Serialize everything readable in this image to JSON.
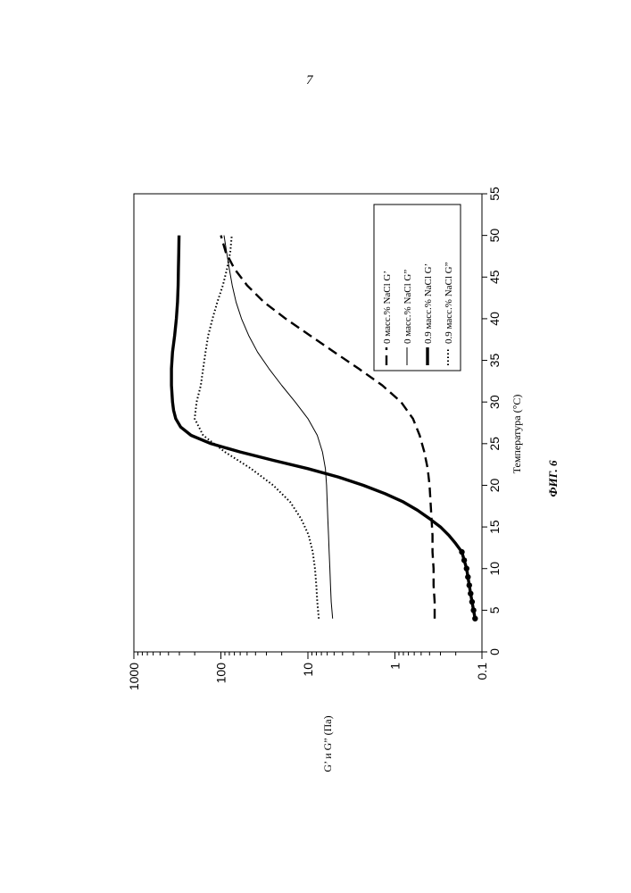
{
  "page": {
    "number": "7"
  },
  "chart_data": {
    "type": "line",
    "orientation": "rotated 90 degrees counter-clockwise on the page",
    "figure_caption": "ФИГ. 6",
    "xlabel": "Температура (°C)",
    "ylabel": "G’ и G” (Па)",
    "xlim": [
      0,
      55
    ],
    "ylim": [
      0.1,
      1000
    ],
    "y_scale": "log",
    "x_ticks": [
      "0",
      "5",
      "10",
      "15",
      "20",
      "25",
      "30",
      "35",
      "40",
      "45",
      "50",
      "55"
    ],
    "y_ticks": [
      "0.1",
      "1",
      "10",
      "100",
      "1000"
    ],
    "grid": false,
    "legend_position": "top-right",
    "series": [
      {
        "name": "0 масс.% NaCl G’",
        "style": "dashed",
        "x": [
          4,
          6,
          8,
          10,
          12,
          14,
          16,
          18,
          20,
          22,
          24,
          26,
          28,
          30,
          32,
          34,
          36,
          38,
          40,
          42,
          44,
          46,
          48,
          50
        ],
        "y": [
          0.35,
          0.35,
          0.36,
          0.36,
          0.37,
          0.37,
          0.38,
          0.39,
          0.4,
          0.42,
          0.46,
          0.52,
          0.62,
          0.85,
          1.4,
          2.6,
          5.0,
          9.5,
          18,
          32,
          50,
          70,
          88,
          100
        ]
      },
      {
        "name": "0 масс.% NaCl G”",
        "style": "thin-solid",
        "x": [
          4,
          6,
          8,
          10,
          12,
          14,
          16,
          18,
          20,
          22,
          24,
          26,
          28,
          30,
          32,
          34,
          36,
          38,
          40,
          42,
          44,
          46,
          48,
          50
        ],
        "y": [
          5.2,
          5.4,
          5.5,
          5.6,
          5.7,
          5.8,
          5.9,
          6.0,
          6.1,
          6.3,
          6.8,
          7.8,
          10,
          14,
          20,
          28,
          38,
          48,
          58,
          67,
          74,
          80,
          86,
          92
        ]
      },
      {
        "name": "0.9 масс.% NaCl G’",
        "style": "thick-solid",
        "x": [
          4,
          5,
          6,
          7,
          8,
          9,
          10,
          11,
          12,
          13,
          14,
          15,
          16,
          17,
          18,
          19,
          20,
          21,
          22,
          23,
          24,
          25,
          26,
          27,
          28,
          29,
          30,
          32,
          34,
          36,
          38,
          40,
          42,
          44,
          46,
          48,
          50
        ],
        "y": [
          0.12,
          0.125,
          0.13,
          0.135,
          0.14,
          0.145,
          0.15,
          0.16,
          0.17,
          0.2,
          0.24,
          0.3,
          0.4,
          0.55,
          0.8,
          1.3,
          2.3,
          4.5,
          10,
          25,
          60,
          130,
          220,
          290,
          330,
          350,
          360,
          370,
          370,
          360,
          340,
          325,
          315,
          310,
          308,
          305,
          303
        ]
      },
      {
        "name": "0.9 масс.% NaCl G”",
        "style": "dotted",
        "x": [
          4,
          6,
          8,
          10,
          12,
          14,
          16,
          18,
          20,
          22,
          24,
          26,
          28,
          30,
          32,
          34,
          36,
          38,
          40,
          42,
          44,
          46,
          48,
          50
        ],
        "y": [
          7.5,
          7.8,
          8.0,
          8.3,
          8.8,
          9.8,
          12,
          16,
          25,
          45,
          90,
          160,
          200,
          190,
          170,
          160,
          150,
          140,
          125,
          110,
          95,
          85,
          78,
          75
        ]
      }
    ]
  }
}
